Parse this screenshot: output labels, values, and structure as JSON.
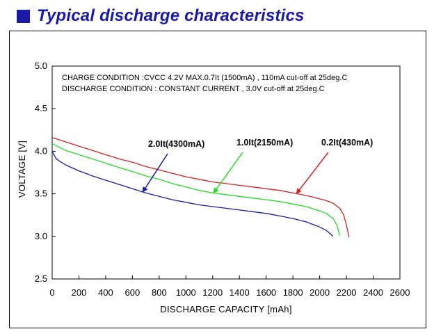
{
  "header": {
    "title": "Typical discharge characteristics",
    "square_color": "#1a1aa6"
  },
  "chart_data": {
    "type": "line",
    "title": "Typical discharge characteristics",
    "xlabel": "DISCHARGE CAPACITY  [mAh]",
    "ylabel": "VOLTAGE  [V]",
    "xlim": [
      0,
      2600
    ],
    "ylim": [
      2.5,
      5.0
    ],
    "xticks": [
      "0",
      "200",
      "400",
      "600",
      "800",
      "1000",
      "1200",
      "1400",
      "1600",
      "1800",
      "2000",
      "2200",
      "2400",
      "2600"
    ],
    "yticks": [
      "2.5",
      "3.0",
      "3.5",
      "4.0",
      "4.5",
      "5.0"
    ],
    "grid": false,
    "notes": [
      "CHARGE CONDITION :CVCC 4.2V MAX.0.7It (1500mA) , 110mA cut-off at  25deg.C",
      "DISCHARGE CONDITION : CONSTANT CURRENT , 3.0V cut-off at  25deg.C"
    ],
    "series": [
      {
        "name": "0.2It(430mA)",
        "color": "#d42020",
        "x": [
          0,
          100,
          200,
          300,
          400,
          500,
          600,
          700,
          800,
          900,
          1000,
          1100,
          1200,
          1300,
          1400,
          1500,
          1600,
          1700,
          1800,
          1900,
          2000,
          2050,
          2100,
          2150,
          2180,
          2200,
          2220
        ],
        "y": [
          4.16,
          4.11,
          4.06,
          4.01,
          3.96,
          3.91,
          3.87,
          3.82,
          3.78,
          3.74,
          3.7,
          3.67,
          3.64,
          3.62,
          3.6,
          3.58,
          3.56,
          3.54,
          3.51,
          3.48,
          3.44,
          3.42,
          3.39,
          3.33,
          3.25,
          3.13,
          2.99
        ]
      },
      {
        "name": "1.0It(2150mA)",
        "color": "#22dd22",
        "x": [
          0,
          100,
          200,
          300,
          400,
          500,
          600,
          700,
          800,
          900,
          1000,
          1100,
          1200,
          1300,
          1400,
          1500,
          1600,
          1700,
          1800,
          1900,
          2000,
          2050,
          2100,
          2130,
          2150
        ],
        "y": [
          4.09,
          4.01,
          3.96,
          3.91,
          3.86,
          3.81,
          3.76,
          3.71,
          3.67,
          3.62,
          3.58,
          3.54,
          3.51,
          3.49,
          3.47,
          3.45,
          3.43,
          3.41,
          3.38,
          3.35,
          3.3,
          3.27,
          3.21,
          3.13,
          3.01
        ]
      },
      {
        "name": "2.0It(4300mA)",
        "color": "#1a1aa6",
        "x": [
          0,
          30,
          100,
          200,
          300,
          400,
          500,
          600,
          700,
          800,
          900,
          1000,
          1100,
          1200,
          1300,
          1400,
          1500,
          1600,
          1700,
          1800,
          1900,
          2000,
          2050,
          2080,
          2100
        ],
        "y": [
          4.0,
          3.91,
          3.84,
          3.77,
          3.71,
          3.66,
          3.61,
          3.56,
          3.51,
          3.47,
          3.43,
          3.4,
          3.37,
          3.35,
          3.33,
          3.31,
          3.29,
          3.27,
          3.24,
          3.21,
          3.17,
          3.11,
          3.07,
          3.03,
          3.0
        ]
      }
    ],
    "annotations": [
      {
        "text": "2.0It(4300mA)",
        "color": "#1a1aa6"
      },
      {
        "text": "1.0It(2150mA)",
        "color": "#22dd22"
      },
      {
        "text": "0.2It(430mA)",
        "color": "#d42020"
      }
    ]
  }
}
